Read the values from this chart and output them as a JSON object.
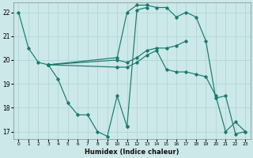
{
  "xlabel": "Humidex (Indice chaleur)",
  "xlim": [
    -0.5,
    23.5
  ],
  "ylim": [
    16.7,
    22.4
  ],
  "yticks": [
    17,
    18,
    19,
    20,
    21,
    22
  ],
  "xticks": [
    0,
    1,
    2,
    3,
    4,
    5,
    6,
    7,
    8,
    9,
    10,
    11,
    12,
    13,
    14,
    15,
    16,
    17,
    18,
    19,
    20,
    21,
    22,
    23
  ],
  "bg_color": "#cce8e8",
  "line_color": "#1a7a6e",
  "grid_color": "#b0d8d8",
  "lines": [
    {
      "x": [
        0,
        1,
        2,
        3
      ],
      "y": [
        22.0,
        20.5,
        19.9,
        19.8
      ]
    },
    {
      "x": [
        3,
        4,
        5,
        6,
        7,
        8,
        9,
        10,
        11
      ],
      "y": [
        19.8,
        19.2,
        18.2,
        17.7,
        17.7,
        17.0,
        16.8,
        18.5,
        17.2
      ]
    },
    {
      "x": [
        11,
        12,
        13
      ],
      "y": [
        17.2,
        22.1,
        22.2
      ]
    },
    {
      "x": [
        3,
        10,
        11,
        12,
        13,
        14,
        15,
        16,
        17
      ],
      "y": [
        19.8,
        20.0,
        19.9,
        20.1,
        20.4,
        20.5,
        20.5,
        20.6,
        20.8
      ]
    },
    {
      "x": [
        3,
        10,
        11,
        12,
        13,
        14,
        15,
        16,
        17,
        18,
        19,
        20,
        21,
        22,
        23
      ],
      "y": [
        19.8,
        19.7,
        19.7,
        19.9,
        20.2,
        20.4,
        19.6,
        19.5,
        19.5,
        19.4,
        19.3,
        18.5,
        17.0,
        17.4,
        17.0
      ]
    },
    {
      "x": [
        3,
        10,
        11,
        12,
        13,
        14,
        15,
        16,
        17,
        18,
        19,
        20,
        21,
        22,
        23
      ],
      "y": [
        19.8,
        20.1,
        22.0,
        22.3,
        22.3,
        22.2,
        22.2,
        21.8,
        22.0,
        21.8,
        20.8,
        18.4,
        18.5,
        16.9,
        17.0
      ]
    }
  ],
  "figsize": [
    3.2,
    2.0
  ],
  "dpi": 100
}
